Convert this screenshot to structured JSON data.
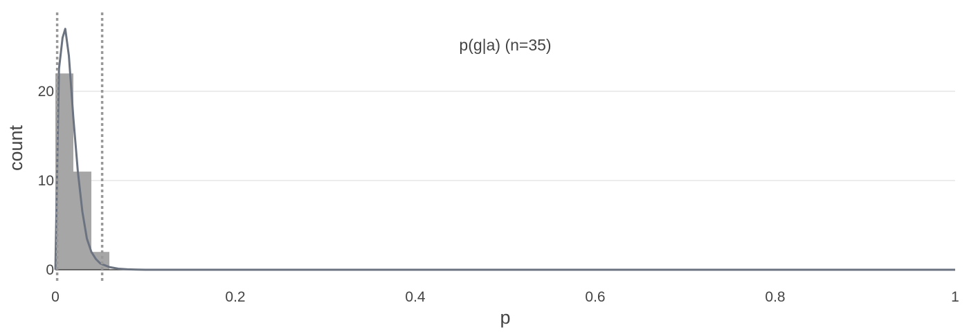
{
  "chart_data": {
    "type": "bar",
    "title": "p(g|a) (n=35)",
    "xlabel": "p",
    "ylabel": "count",
    "xlim": [
      0,
      1
    ],
    "ylim": [
      0,
      28
    ],
    "x_ticks": [
      {
        "value": 0,
        "label": "0"
      },
      {
        "value": 0.2,
        "label": "0.2"
      },
      {
        "value": 0.4,
        "label": "0.4"
      },
      {
        "value": 0.6,
        "label": "0.6"
      },
      {
        "value": 0.8,
        "label": "0.8"
      },
      {
        "value": 1,
        "label": "1"
      }
    ],
    "y_ticks": [
      {
        "value": 0,
        "label": "0"
      },
      {
        "value": 10,
        "label": "10"
      },
      {
        "value": 20,
        "label": "20"
      }
    ],
    "grid": true,
    "histogram": {
      "bin_edges": [
        0,
        0.02,
        0.04,
        0.06
      ],
      "counts": [
        22,
        11,
        2
      ],
      "color": "#a6a6a6"
    },
    "density_curve": {
      "color": "#6b7280",
      "x": [
        0,
        0.004,
        0.008,
        0.011,
        0.015,
        0.02,
        0.025,
        0.03,
        0.035,
        0.04,
        0.045,
        0.05,
        0.06,
        0.07,
        0.08,
        0.09,
        0.1,
        0.12,
        1
      ],
      "y": [
        0,
        22.5,
        26,
        27,
        24,
        17,
        11,
        6.5,
        3.5,
        2,
        1.2,
        0.7,
        0.3,
        0.12,
        0.05,
        0.02,
        0,
        0,
        0
      ]
    },
    "reference_lines": {
      "color": "#999999",
      "style": "dotted",
      "x": [
        0.002,
        0.052
      ]
    }
  }
}
